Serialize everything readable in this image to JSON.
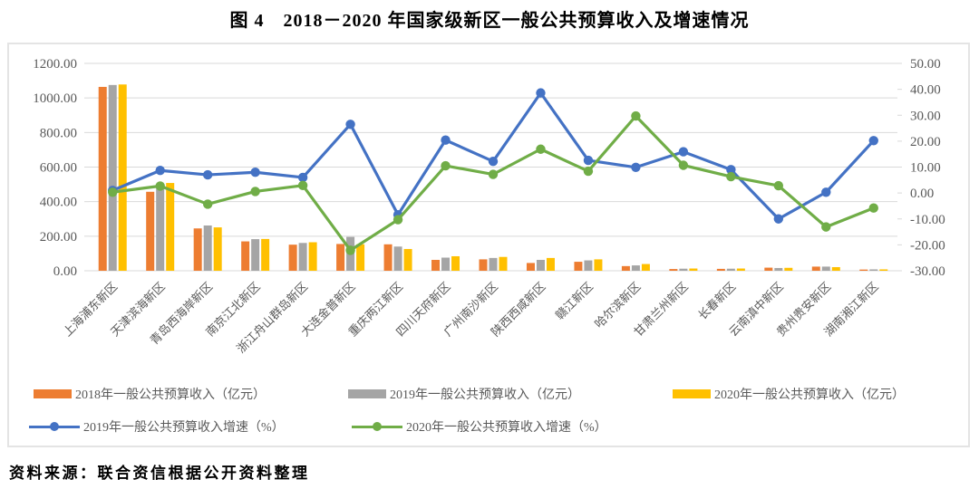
{
  "title": "图 4　2018－2020 年国家级新区一般公共预算收入及增速情况",
  "source": "资料来源：联合资信根据公开资料整理",
  "colors": {
    "bar_2018": "#ED7D31",
    "bar_2019": "#A5A5A5",
    "bar_2020": "#FFC000",
    "line_2019": "#4472C4",
    "line_2020": "#70AD47",
    "axis_text": "#595959",
    "gridline": "#D9D9D9",
    "frame_border": "#E4E4E4"
  },
  "chart_data": {
    "type": "combo-bar-line",
    "categories": [
      "上海浦东新区",
      "天津滨海新区",
      "青岛西海岸新区",
      "南京江北新区",
      "浙江舟山群岛新区",
      "大连金普新区",
      "重庆两江新区",
      "四川天府新区",
      "广州南沙新区",
      "陕西西咸新区",
      "赣江新区",
      "哈尔滨新区",
      "甘肃兰州新区",
      "长春新区",
      "云南滇中新区",
      "贵州贵安新区",
      "湖南湘江新区"
    ],
    "series": [
      {
        "name": "2018年一般公共预算收入（亿元）",
        "type": "bar",
        "axis": "left",
        "color": "#ED7D31",
        "values": [
          1064,
          457,
          245,
          170,
          151,
          155,
          153,
          63,
          66,
          45,
          52,
          27,
          10,
          11,
          18,
          24,
          7
        ]
      },
      {
        "name": "2019年一般公共预算收入（亿元）",
        "type": "bar",
        "axis": "left",
        "color": "#A5A5A5",
        "values": [
          1075,
          495,
          262,
          183,
          161,
          196,
          140,
          76,
          74,
          63,
          60,
          31,
          12,
          12,
          16,
          24,
          8
        ]
      },
      {
        "name": "2020年一般公共预算收入（亿元）",
        "type": "bar",
        "axis": "left",
        "color": "#FFC000",
        "values": [
          1078,
          508,
          251,
          184,
          165,
          153,
          126,
          84,
          80,
          74,
          66,
          39,
          13,
          13,
          17,
          21,
          8
        ]
      },
      {
        "name": "2019年一般公共预算收入增速（%）",
        "type": "line",
        "axis": "right",
        "color": "#4472C4",
        "values": [
          1.0,
          8.7,
          7.0,
          8.0,
          6.0,
          26.5,
          -8.4,
          20.4,
          12.2,
          38.6,
          12.6,
          9.9,
          15.9,
          9.0,
          -10.0,
          0.3,
          20.2
        ]
      },
      {
        "name": "2020年一般公共预算收入增速（%）",
        "type": "line",
        "axis": "right",
        "color": "#70AD47",
        "values": [
          0.3,
          2.7,
          -4.3,
          0.6,
          2.9,
          -22.1,
          -10.3,
          10.5,
          7.2,
          16.9,
          8.4,
          29.7,
          10.7,
          6.3,
          2.8,
          -13.1,
          -5.8
        ]
      }
    ],
    "left_axis": {
      "min": 0,
      "max": 1200,
      "step": 200,
      "ticks": [
        "1200.00",
        "1000.00",
        "800.00",
        "600.00",
        "400.00",
        "200.00",
        "0.00"
      ]
    },
    "right_axis": {
      "min": -30,
      "max": 50,
      "step": 10,
      "ticks": [
        "50.00",
        "40.00",
        "30.00",
        "20.00",
        "10.00",
        "0.00",
        "-10.00",
        "-20.00",
        "-30.00"
      ]
    },
    "grid": "horizontal-only",
    "legend_position": "bottom-inside"
  }
}
